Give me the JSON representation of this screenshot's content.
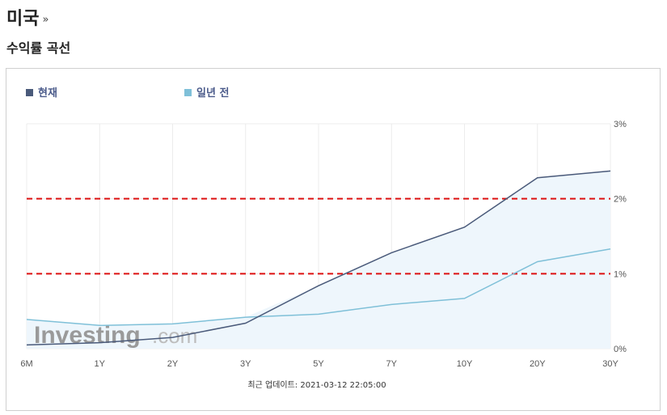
{
  "header": {
    "title": "미국",
    "more": "»"
  },
  "section": {
    "title": "수익률 곡선"
  },
  "watermark": {
    "brand": "Investing",
    "suffix": ".com"
  },
  "update": {
    "label": "최근 업데이트: 2021-03-12 22:05:00"
  },
  "chart_data": {
    "type": "line",
    "categories": [
      "6M",
      "1Y",
      "2Y",
      "3Y",
      "5Y",
      "7Y",
      "10Y",
      "20Y",
      "30Y"
    ],
    "series": [
      {
        "name": "현재",
        "color": "#4a5a7a",
        "values": [
          0.05,
          0.08,
          0.15,
          0.34,
          0.84,
          1.28,
          1.62,
          2.28,
          2.37
        ]
      },
      {
        "name": "일년 전",
        "color": "#7fc0d8",
        "values": [
          0.39,
          0.31,
          0.33,
          0.42,
          0.46,
          0.59,
          0.67,
          1.16,
          1.33
        ]
      }
    ],
    "y_axis": {
      "ticks": [
        "0%",
        "1%",
        "2%",
        "3%"
      ],
      "tick_values": [
        0,
        1,
        2,
        3
      ],
      "side": "right"
    },
    "ylim": [
      0,
      3
    ],
    "reference_lines": [
      1,
      2
    ],
    "reference_line_color": "#dd1111",
    "area_fill_color": "#eef6fc",
    "grid": true,
    "legend_position": "top-left"
  }
}
